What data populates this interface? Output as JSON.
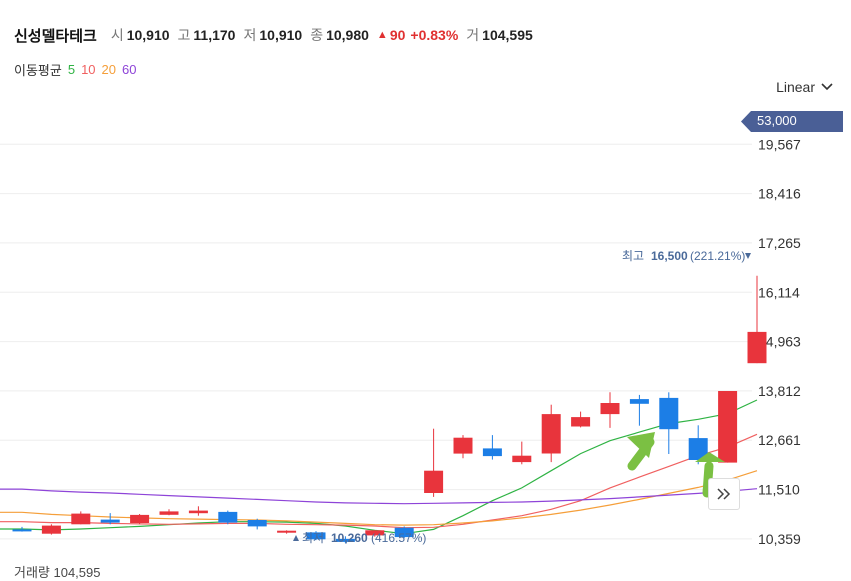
{
  "header": {
    "name": "신성델타테크",
    "open_label": "시",
    "open": "10,910",
    "high_label": "고",
    "high": "11,170",
    "low_label": "저",
    "low": "10,910",
    "close_label": "종",
    "close": "10,980",
    "change": "90",
    "change_pct": "+0.83%",
    "volume_label": "거",
    "volume": "104,595"
  },
  "ma_legend": {
    "title": "이동평균",
    "items": [
      {
        "period": "5",
        "color": "#2fb344"
      },
      {
        "period": "10",
        "color": "#f06060"
      },
      {
        "period": "20",
        "color": "#f59f3a"
      },
      {
        "period": "60",
        "color": "#8e44d8"
      }
    ]
  },
  "scale_select": {
    "label": "Linear"
  },
  "current_price_tag": "53,000",
  "annotations": {
    "high_label": "최고",
    "high_value": "16,500",
    "high_pct": "(221.21%)",
    "low_label": "최저",
    "low_value": "10,260",
    "low_pct": "(416.57%)"
  },
  "bottom_text": "거래량 104,595",
  "colors": {
    "up": "#e8343c",
    "down": "#1c7ee6",
    "arrow": "#7bc043",
    "tag": "#4a5f96"
  },
  "chart_data": {
    "type": "candlestick",
    "yaxis": {
      "ticks": [
        "10,359",
        "11,510",
        "12,661",
        "13,812",
        "14,963",
        "16,114",
        "17,265",
        "18,416",
        "19,567"
      ],
      "ylim": [
        10100,
        19900
      ]
    },
    "candles": [
      {
        "o": 10580,
        "h": 10640,
        "l": 10530,
        "c": 10580,
        "dir": "down"
      },
      {
        "o": 10480,
        "h": 10700,
        "l": 10460,
        "c": 10670,
        "dir": "up"
      },
      {
        "o": 10700,
        "h": 11000,
        "l": 10700,
        "c": 10950,
        "dir": "up"
      },
      {
        "o": 10810,
        "h": 10960,
        "l": 10700,
        "c": 10740,
        "dir": "down"
      },
      {
        "o": 10730,
        "h": 10940,
        "l": 10700,
        "c": 10920,
        "dir": "up"
      },
      {
        "o": 10920,
        "h": 11050,
        "l": 10910,
        "c": 11000,
        "dir": "up"
      },
      {
        "o": 10960,
        "h": 11120,
        "l": 10900,
        "c": 11020,
        "dir": "up"
      },
      {
        "o": 10990,
        "h": 11020,
        "l": 10700,
        "c": 10740,
        "dir": "down"
      },
      {
        "o": 10800,
        "h": 10830,
        "l": 10580,
        "c": 10650,
        "dir": "down"
      },
      {
        "o": 10510,
        "h": 10560,
        "l": 10480,
        "c": 10550,
        "dir": "up"
      },
      {
        "o": 10510,
        "h": 10540,
        "l": 10330,
        "c": 10350,
        "dir": "down"
      },
      {
        "o": 10360,
        "h": 10420,
        "l": 10260,
        "c": 10290,
        "dir": "down"
      },
      {
        "o": 10440,
        "h": 10560,
        "l": 10410,
        "c": 10560,
        "dir": "up"
      },
      {
        "o": 10620,
        "h": 10650,
        "l": 10380,
        "c": 10400,
        "dir": "down"
      },
      {
        "o": 11430,
        "h": 12930,
        "l": 11340,
        "c": 11950,
        "dir": "up"
      },
      {
        "o": 12350,
        "h": 12780,
        "l": 12240,
        "c": 12720,
        "dir": "up"
      },
      {
        "o": 12470,
        "h": 12780,
        "l": 12210,
        "c": 12290,
        "dir": "down"
      },
      {
        "o": 12150,
        "h": 12630,
        "l": 12100,
        "c": 12300,
        "dir": "up"
      },
      {
        "o": 12350,
        "h": 13490,
        "l": 12150,
        "c": 13270,
        "dir": "up"
      },
      {
        "o": 12980,
        "h": 13330,
        "l": 12960,
        "c": 13200,
        "dir": "up"
      },
      {
        "o": 13270,
        "h": 13780,
        "l": 12950,
        "c": 13530,
        "dir": "up"
      },
      {
        "o": 13620,
        "h": 13720,
        "l": 13000,
        "c": 13510,
        "dir": "down"
      },
      {
        "o": 13650,
        "h": 13780,
        "l": 12340,
        "c": 12920,
        "dir": "down"
      },
      {
        "o": 12710,
        "h": 13010,
        "l": 12100,
        "c": 12200,
        "dir": "down"
      },
      {
        "o": 12140,
        "h": 13810,
        "l": 12140,
        "c": 13810,
        "dir": "up"
      },
      {
        "o": 14460,
        "h": 16500,
        "l": 14460,
        "c": 15190,
        "dir": "up"
      }
    ],
    "moving_averages": [
      {
        "period": "5",
        "values": [
          10590,
          10570,
          10590,
          10620,
          10650,
          10690,
          10730,
          10760,
          10760,
          10750,
          10720,
          10660,
          10560,
          10480,
          10580,
          10900,
          11250,
          11550,
          11950,
          12350,
          12650,
          12850,
          13050,
          13150,
          13280,
          13600
        ]
      },
      {
        "period": "10",
        "values": [
          10760,
          10740,
          10740,
          10720,
          10710,
          10700,
          10710,
          10720,
          10720,
          10700,
          10690,
          10680,
          10660,
          10620,
          10630,
          10700,
          10800,
          10900,
          11050,
          11250,
          11550,
          11800,
          12050,
          12300,
          12500,
          12800
        ]
      },
      {
        "period": "20",
        "values": [
          10980,
          10930,
          10900,
          10870,
          10850,
          10830,
          10820,
          10810,
          10800,
          10780,
          10750,
          10720,
          10690,
          10680,
          10690,
          10730,
          10780,
          10850,
          10930,
          11030,
          11150,
          11280,
          11420,
          11560,
          11730,
          11950
        ]
      },
      {
        "period": "60",
        "values": [
          11520,
          11480,
          11450,
          11430,
          11400,
          11370,
          11340,
          11310,
          11280,
          11250,
          11220,
          11200,
          11190,
          11180,
          11190,
          11200,
          11210,
          11220,
          11240,
          11270,
          11300,
          11340,
          11380,
          11420,
          11470,
          11530
        ]
      }
    ]
  }
}
